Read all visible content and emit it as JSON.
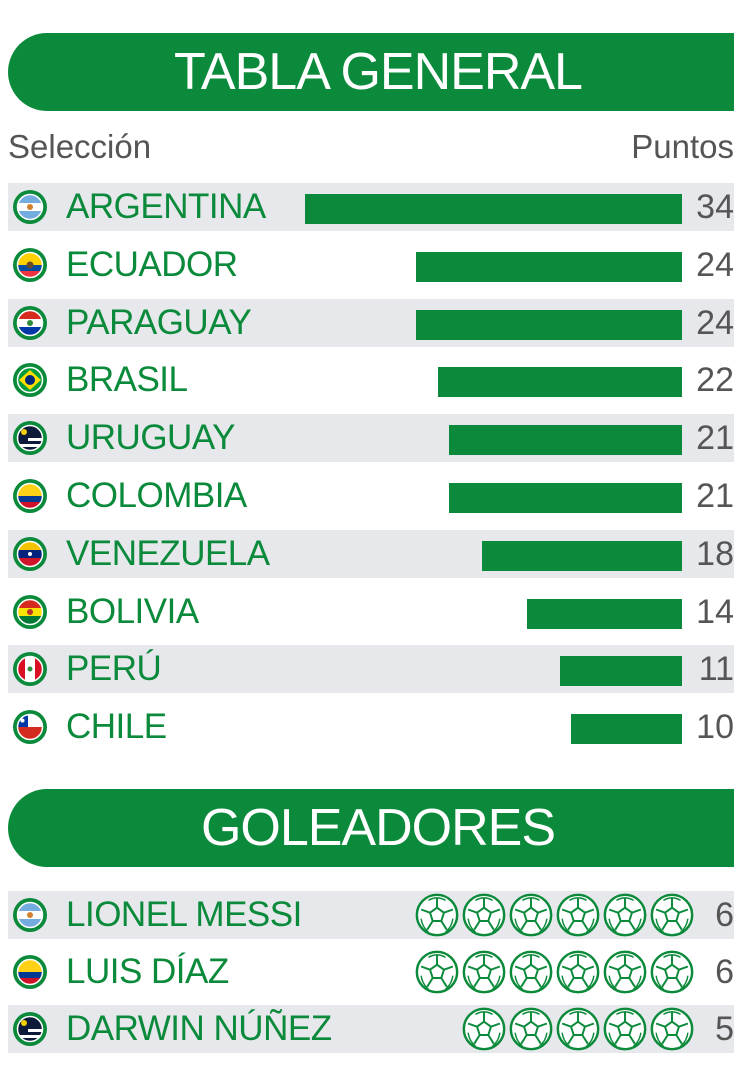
{
  "colors": {
    "green": "#0a8a3a",
    "shade": "#e6e8ec",
    "text_gray": "#555555"
  },
  "tabla": {
    "title": "TABLA GENERAL",
    "col_seleccion": "Selección",
    "col_puntos": "Puntos"
  },
  "goleadores": {
    "title": "GOLEADORES"
  },
  "chart_data": [
    {
      "type": "bar",
      "title": "TABLA GENERAL",
      "xlabel": "Selección",
      "ylabel": "Puntos",
      "ylim": [
        0,
        34
      ],
      "categories": [
        "ARGENTINA",
        "ECUADOR",
        "PARAGUAY",
        "BRASIL",
        "URUGUAY",
        "COLOMBIA",
        "VENEZUELA",
        "BOLIVIA",
        "PERÚ",
        "CHILE"
      ],
      "values": [
        34,
        24,
        24,
        22,
        21,
        21,
        18,
        14,
        11,
        10
      ],
      "flag_icons": [
        "argentina-flag-icon",
        "ecuador-flag-icon",
        "paraguay-flag-icon",
        "brasil-flag-icon",
        "uruguay-flag-icon",
        "colombia-flag-icon",
        "venezuela-flag-icon",
        "bolivia-flag-icon",
        "peru-flag-icon",
        "chile-flag-icon"
      ]
    },
    {
      "type": "table",
      "title": "GOLEADORES",
      "categories": [
        "LIONEL MESSI",
        "LUIS DÍAZ",
        "DARWIN NÚÑEZ"
      ],
      "values": [
        6,
        6,
        5
      ],
      "flag_icons": [
        "argentina-flag-icon",
        "colombia-flag-icon",
        "uruguay-flag-icon"
      ],
      "mark_icon": "soccer-ball-icon"
    }
  ]
}
